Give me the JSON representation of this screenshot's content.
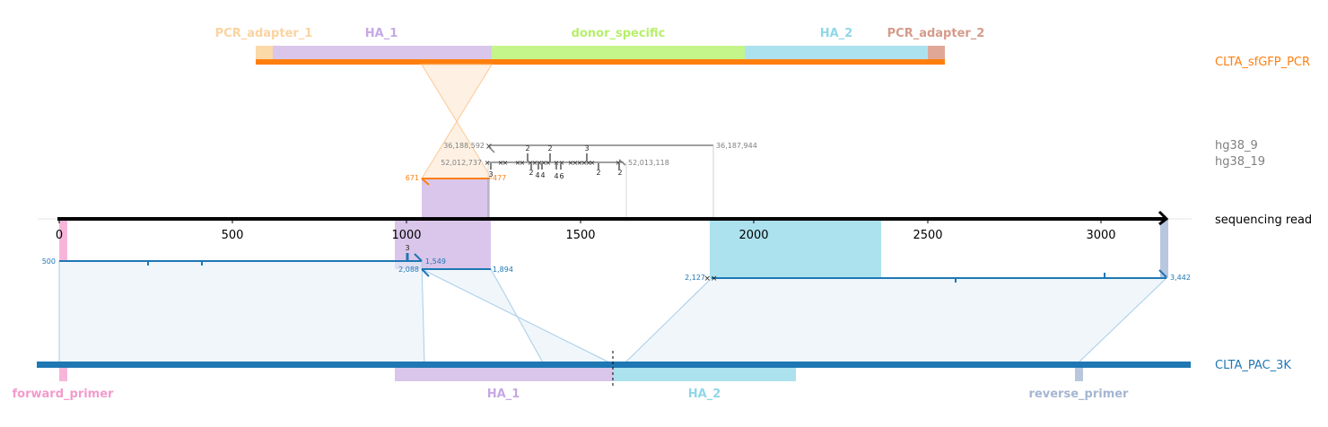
{
  "diagram": {
    "ref_labels": {
      "pcr": "CLTA_sfGFP_PCR",
      "hg38_9": "hg38_9",
      "hg38_19": "hg38_19",
      "read": "sequencing read",
      "pac": "CLTA_PAC_3K"
    },
    "pcr_features": [
      {
        "name": "PCR_adapter_1",
        "color": "#fcd9a8",
        "text_color": "#fbd3a0"
      },
      {
        "name": "HA_1",
        "color": "#d9c6ea",
        "text_color": "#c6a8e4"
      },
      {
        "name": "donor_specific",
        "color": "#c4f58a",
        "text_color": "#b7ef6a"
      },
      {
        "name": "HA_2",
        "color": "#ace2ee",
        "text_color": "#8fd7e8"
      },
      {
        "name": "PCR_adapter_2",
        "color": "#dfa896",
        "text_color": "#d59b8a"
      }
    ],
    "pac_features": [
      {
        "name": "forward_primer",
        "color": "#f7b6d9",
        "text_color": "#f29bcb"
      },
      {
        "name": "HA_1",
        "color": "#d9c6ea",
        "text_color": "#c6a8e4"
      },
      {
        "name": "HA_2",
        "color": "#ace2ee",
        "text_color": "#8fd7e8"
      },
      {
        "name": "reverse_primer",
        "color": "#b8c7de",
        "text_color": "#a5b6d2"
      }
    ],
    "read_axis_ticks": [
      "0",
      "500",
      "1000",
      "1500",
      "2000",
      "2500",
      "3000"
    ],
    "alignment_labels": {
      "hg9_start": "36,188,592",
      "hg9_end": "36,187,944",
      "hg19_start": "52,012,737",
      "hg19_end": "52,013,118",
      "pcr_start": "671",
      "pcr_end": "477",
      "pac1_left": "500",
      "pac1_right": "1,549",
      "pac1_indel": "3",
      "pac2_left": "2,088",
      "pac2_right": "1,894",
      "pac3_left": "2,127",
      "pac3_right": "3,442"
    },
    "hg19_top_indels": [
      "2",
      "2",
      "3"
    ],
    "hg19_bottom_indels": [
      "3",
      "2",
      "4",
      "4",
      "4",
      "6",
      "2",
      "2"
    ],
    "colors": {
      "pcr": "#ff7f0e",
      "hg": "#808080",
      "pac": "#1f77b4",
      "read": "#000000"
    }
  }
}
